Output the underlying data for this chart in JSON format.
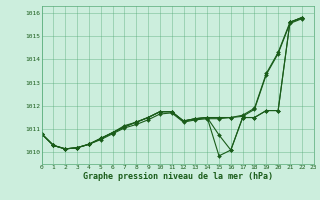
{
  "title": "Graphe pression niveau de la mer (hPa)",
  "bg_color": "#cceedd",
  "grid_color": "#55aa77",
  "line_color": "#1a5c1a",
  "x_min": 0,
  "x_max": 23,
  "y_min": 1009.5,
  "y_max": 1016.3,
  "y_ticks": [
    1010,
    1011,
    1012,
    1013,
    1014,
    1015,
    1016
  ],
  "x_ticks": [
    0,
    1,
    2,
    3,
    4,
    5,
    6,
    7,
    8,
    9,
    10,
    11,
    12,
    13,
    14,
    15,
    16,
    17,
    18,
    19,
    20,
    21,
    22,
    23
  ],
  "lines": [
    [
      1010.8,
      1010.3,
      1010.15,
      1010.2,
      1010.35,
      1010.55,
      1010.8,
      1011.05,
      1011.2,
      1011.4,
      1011.65,
      1011.7,
      1011.3,
      1011.4,
      1011.45,
      1011.45,
      1011.5,
      1011.55,
      1011.85,
      1013.35,
      1014.25,
      1015.55,
      1015.75
    ],
    [
      1010.8,
      1010.3,
      1010.15,
      1010.2,
      1010.35,
      1010.6,
      1010.85,
      1011.1,
      1011.3,
      1011.5,
      1011.75,
      1011.75,
      1011.35,
      1011.45,
      1011.5,
      1011.5,
      1011.5,
      1011.6,
      1011.9,
      1013.4,
      1014.3,
      1015.6,
      1015.8
    ],
    [
      1010.8,
      1010.3,
      1010.15,
      1010.2,
      1010.35,
      1010.6,
      1010.85,
      1011.1,
      1011.3,
      1011.5,
      1011.75,
      1011.75,
      1011.35,
      1011.45,
      1011.5,
      1010.75,
      1010.1,
      1011.5,
      1011.5,
      1011.8,
      1011.8,
      1015.6,
      1015.8
    ],
    [
      1010.8,
      1010.3,
      1010.15,
      1010.2,
      1010.35,
      1010.6,
      1010.85,
      1011.15,
      1011.3,
      1011.5,
      1011.75,
      1011.75,
      1011.35,
      1011.45,
      1011.5,
      1009.85,
      1010.1,
      1011.5,
      1011.5,
      1011.8,
      1011.8,
      1015.6,
      1015.8
    ]
  ],
  "marker": "D",
  "marker_size": 2.0,
  "linewidth": 0.8,
  "title_fontsize": 6.0,
  "tick_fontsize": 4.5
}
